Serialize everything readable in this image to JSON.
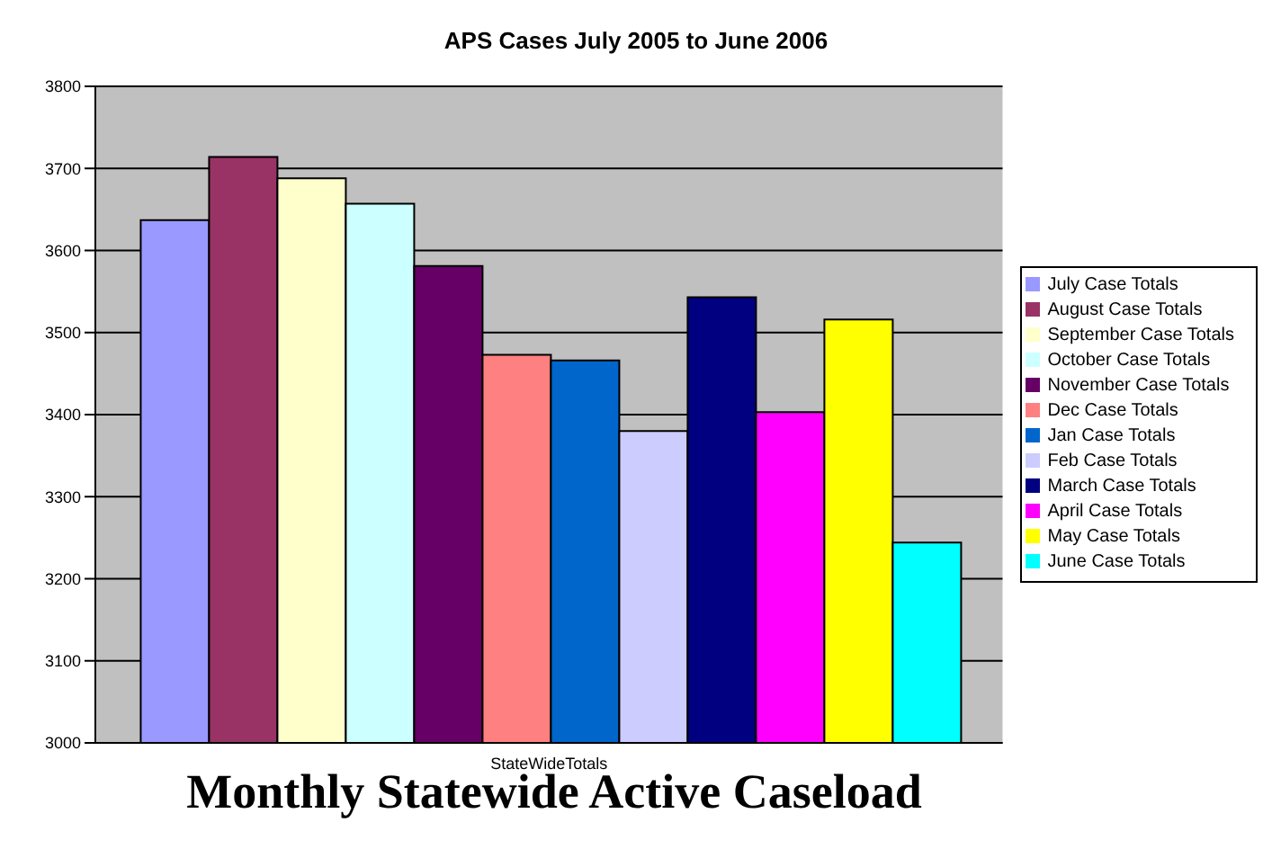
{
  "chart_data": {
    "type": "bar",
    "title": "APS Cases July 2005 to June 2006",
    "categories": [
      "StateWideTotals"
    ],
    "series": [
      {
        "name": "July Case Totals",
        "color": "#9999ff",
        "values": [
          3637
        ]
      },
      {
        "name": "August Case Totals",
        "color": "#993366",
        "values": [
          3714
        ]
      },
      {
        "name": "September Case Totals",
        "color": "#ffffcc",
        "values": [
          3688
        ]
      },
      {
        "name": "October Case Totals",
        "color": "#ccffff",
        "values": [
          3657
        ]
      },
      {
        "name": "November Case Totals",
        "color": "#660066",
        "values": [
          3581
        ]
      },
      {
        "name": "Dec Case Totals",
        "color": "#ff8080",
        "values": [
          3473
        ]
      },
      {
        "name": "Jan Case Totals",
        "color": "#0066cc",
        "values": [
          3466
        ]
      },
      {
        "name": "Feb Case Totals",
        "color": "#ccccff",
        "values": [
          3380
        ]
      },
      {
        "name": "March Case Totals",
        "color": "#000080",
        "values": [
          3543
        ]
      },
      {
        "name": "April Case Totals",
        "color": "#ff00ff",
        "values": [
          3403
        ]
      },
      {
        "name": "May Case Totals",
        "color": "#ffff00",
        "values": [
          3516
        ]
      },
      {
        "name": "June Case Totals",
        "color": "#00ffff",
        "values": [
          3244
        ]
      }
    ],
    "ylim": [
      3000,
      3800
    ],
    "yticks": [
      3000,
      3100,
      3200,
      3300,
      3400,
      3500,
      3600,
      3700,
      3800
    ],
    "grid": "y",
    "legend": "right",
    "annotations": [
      "Monthly Statewide Active Caseload"
    ]
  }
}
